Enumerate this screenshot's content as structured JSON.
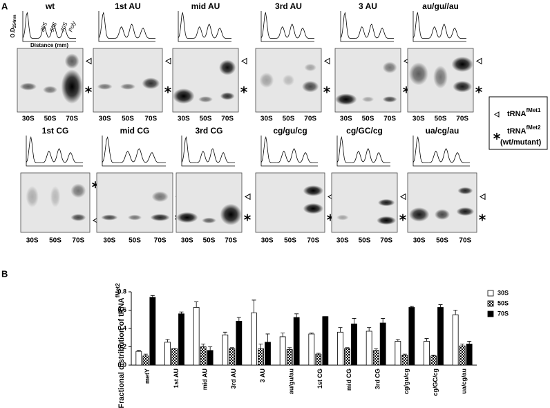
{
  "panel_a": {
    "label": "A",
    "lanes": [
      "30S",
      "50S",
      "70S"
    ],
    "profile_labels": {
      "ylabel": "O.D",
      "ylabel_sub": "254nm",
      "xlabel": "Distance (mm)",
      "peaks": [
        "30S",
        "50S",
        "70S",
        "Poly"
      ]
    },
    "panels": [
      "wt",
      "1st AU",
      "mid AU",
      "3rd AU",
      "3 AU",
      "au/gu//au",
      "1st CG",
      "mid CG",
      "3rd CG",
      "cg/gu/cg",
      "cg/GC/cg",
      "ua/cg/au"
    ],
    "legend": [
      {
        "text": "tRNA",
        "sup": "fMet1"
      },
      {
        "text": "tRNA",
        "sup": "fMet2",
        "note": "(wt/mutant)"
      }
    ]
  },
  "chart_data": {
    "type": "bar",
    "panel_label": "B",
    "ylabel": "Fractional distribution of tRNA",
    "ylabel_sup": "fMet2",
    "categories": [
      "metY",
      "1st AU",
      "mid AU",
      "3rd AU",
      "3 AU",
      "au/gu/au",
      "1st CG",
      "mid CG",
      "3rd CG",
      "cg/gu/cg",
      "cg/GC/cg",
      "ua/cg/au"
    ],
    "series": [
      {
        "name": "30S",
        "color": "#ffffff",
        "values": [
          0.15,
          0.25,
          0.63,
          0.33,
          0.57,
          0.31,
          0.34,
          0.36,
          0.37,
          0.26,
          0.26,
          0.55
        ],
        "errors": [
          0.01,
          0.03,
          0.06,
          0.03,
          0.14,
          0.04,
          0.01,
          0.05,
          0.04,
          0.02,
          0.03,
          0.05
        ]
      },
      {
        "name": "50S",
        "color": "checkered",
        "values": [
          0.1,
          0.18,
          0.2,
          0.18,
          0.18,
          0.17,
          0.12,
          0.18,
          0.16,
          0.11,
          0.1,
          0.21
        ],
        "errors": [
          0.02,
          0,
          0.03,
          0.01,
          0.05,
          0.02,
          0.01,
          0.01,
          0.02,
          0.01,
          0.01,
          0.02
        ]
      },
      {
        "name": "70S",
        "color": "#000000",
        "values": [
          0.74,
          0.56,
          0.16,
          0.48,
          0.25,
          0.52,
          0.53,
          0.45,
          0.46,
          0.63,
          0.63,
          0.23
        ],
        "errors": [
          0.02,
          0.02,
          0.04,
          0.04,
          0.09,
          0.04,
          0,
          0.06,
          0.05,
          0.01,
          0.03,
          0.03
        ]
      }
    ],
    "ylim": [
      0,
      0.8
    ],
    "yticks": [
      {
        "value": 0,
        "label": "0.0"
      },
      {
        "value": 0.2,
        "label": "0.2"
      },
      {
        "value": 0.4,
        "label": "0.4"
      },
      {
        "value": 0.6,
        "label": "0.6"
      },
      {
        "value": 0.8,
        "label": "0.8"
      }
    ]
  }
}
